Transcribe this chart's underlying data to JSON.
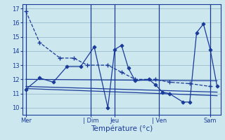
{
  "xlabel": "Température (°c)",
  "background_color": "#cce8ee",
  "plot_bg_color": "#cce8ee",
  "line_color": "#1a3a9a",
  "grid_color": "#99bbcc",
  "ylim": [
    9.5,
    17.3
  ],
  "xlim": [
    -0.5,
    28.5
  ],
  "yticks": [
    10,
    11,
    12,
    13,
    14,
    15,
    16,
    17
  ],
  "day_labels": [
    "Mer",
    "| Dim",
    "Jeu",
    "| Ven",
    "Sam"
  ],
  "day_positions": [
    0,
    9.5,
    13,
    19.5,
    27
  ],
  "series_dashed": {
    "x": [
      0,
      2,
      5,
      7,
      9,
      12,
      14,
      16,
      19,
      21,
      24,
      27
    ],
    "y": [
      16.8,
      14.6,
      13.5,
      13.5,
      13.0,
      13.0,
      12.5,
      12.0,
      12.0,
      11.8,
      11.7,
      11.5
    ]
  },
  "series_main": {
    "x": [
      0,
      2,
      4,
      6,
      8,
      10,
      12,
      13,
      14,
      15,
      16,
      18,
      19,
      20,
      21,
      23,
      24,
      25,
      26,
      27,
      28
    ],
    "y": [
      11.3,
      12.1,
      11.8,
      12.9,
      12.9,
      14.3,
      10.0,
      14.1,
      14.4,
      12.8,
      11.9,
      12.0,
      11.6,
      11.1,
      11.0,
      10.4,
      10.4,
      15.3,
      15.9,
      14.1,
      11.5
    ]
  },
  "trend1": {
    "x": [
      0,
      28
    ],
    "y": [
      12.0,
      11.9
    ]
  },
  "trend2": {
    "x": [
      0,
      28
    ],
    "y": [
      11.5,
      11.1
    ]
  },
  "trend3": {
    "x": [
      0,
      28
    ],
    "y": [
      11.35,
      10.85
    ]
  }
}
